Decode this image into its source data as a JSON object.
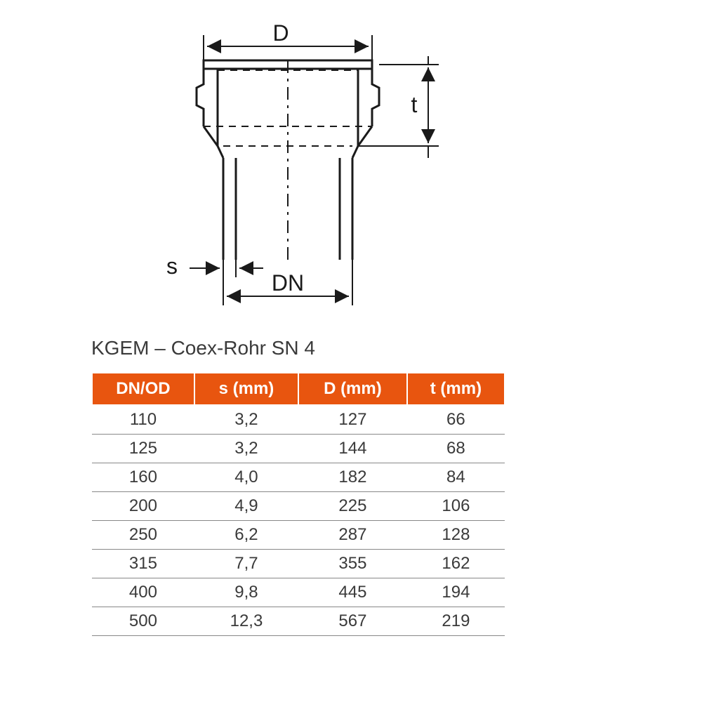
{
  "diagram": {
    "labels": {
      "D": "D",
      "t": "t",
      "s": "s",
      "DN": "DN"
    },
    "stroke_color": "#1a1a1a",
    "stroke_width": 3,
    "stroke_width_thin": 2,
    "font_size": 32
  },
  "table": {
    "title": "KGEM – Coex-Rohr SN 4",
    "header_bg": "#e8550f",
    "header_fg": "#ffffff",
    "text_color": "#3a3a3a",
    "border_color": "#888888",
    "title_fontsize": 28,
    "header_fontsize": 24,
    "cell_fontsize": 24,
    "columns": [
      "DN/OD",
      "s (mm)",
      "D (mm)",
      "t (mm)"
    ],
    "rows": [
      [
        "110",
        "3,2",
        "127",
        "66"
      ],
      [
        "125",
        "3,2",
        "144",
        "68"
      ],
      [
        "160",
        "4,0",
        "182",
        "84"
      ],
      [
        "200",
        "4,9",
        "225",
        "106"
      ],
      [
        "250",
        "6,2",
        "287",
        "128"
      ],
      [
        "315",
        "7,7",
        "355",
        "162"
      ],
      [
        "400",
        "9,8",
        "445",
        "194"
      ],
      [
        "500",
        "12,3",
        "567",
        "219"
      ]
    ]
  }
}
